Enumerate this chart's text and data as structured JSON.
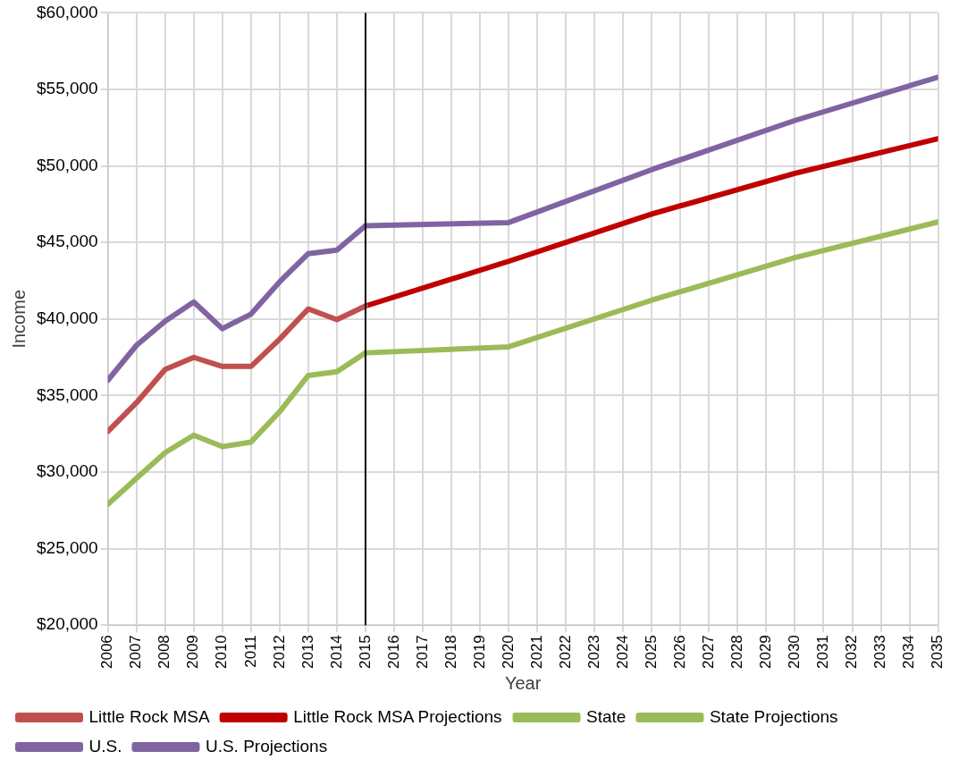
{
  "chart_data": {
    "type": "line",
    "xlabel": "Year",
    "ylabel": "Income",
    "series": [
      {
        "name": "Little Rock MSA",
        "color": "#c0504d",
        "x": [
          2006,
          2007,
          2008,
          2009,
          2010,
          2011,
          2012,
          2013,
          2014,
          2015
        ],
        "values": [
          32650,
          34530,
          36700,
          37490,
          36900,
          36900,
          38680,
          40660,
          39960,
          40850
        ]
      },
      {
        "name": "Little Rock MSA Projections",
        "color": "#c00000",
        "x": [
          2015,
          2020,
          2025,
          2030,
          2035
        ],
        "values": [
          40850,
          43770,
          46860,
          49520,
          51780
        ]
      },
      {
        "name": "State",
        "color": "#9bbb59",
        "x": [
          2006,
          2007,
          2008,
          2009,
          2010,
          2011,
          2012,
          2013,
          2014,
          2015
        ],
        "values": [
          27900,
          29590,
          31270,
          32410,
          31660,
          31960,
          33940,
          36310,
          36560,
          37790
        ]
      },
      {
        "name": "State Projections",
        "color": "#9bbb59",
        "x": [
          2015,
          2020,
          2025,
          2030,
          2035
        ],
        "values": [
          37790,
          38180,
          41230,
          44010,
          46340
        ]
      },
      {
        "name": "U.S.",
        "color": "#8064a2",
        "x": [
          2006,
          2007,
          2008,
          2009,
          2010,
          2011,
          2012,
          2013,
          2014,
          2015
        ],
        "values": [
          36000,
          38280,
          39860,
          41110,
          39370,
          40320,
          42430,
          44270,
          44500,
          46090
        ]
      },
      {
        "name": "U.S. Projections",
        "color": "#8064a2",
        "x": [
          2015,
          2020,
          2025,
          2030,
          2035
        ],
        "values": [
          46090,
          46300,
          49760,
          52970,
          55800
        ]
      }
    ],
    "xlim": [
      2006,
      2035
    ],
    "xticks": [
      2006,
      2007,
      2008,
      2009,
      2010,
      2011,
      2012,
      2013,
      2014,
      2015,
      2016,
      2017,
      2018,
      2019,
      2020,
      2021,
      2022,
      2023,
      2024,
      2025,
      2026,
      2027,
      2028,
      2029,
      2030,
      2031,
      2032,
      2033,
      2034,
      2035
    ],
    "ylim": [
      20000,
      60000
    ],
    "yticks": [
      {
        "value": 20000,
        "label": "$20,000"
      },
      {
        "value": 25000,
        "label": "$25,000"
      },
      {
        "value": 30000,
        "label": "$30,000"
      },
      {
        "value": 35000,
        "label": "$35,000"
      },
      {
        "value": 40000,
        "label": "$40,000"
      },
      {
        "value": 45000,
        "label": "$45,000"
      },
      {
        "value": 50000,
        "label": "$50,000"
      },
      {
        "value": 55000,
        "label": "$55,000"
      },
      {
        "value": 60000,
        "label": "$60,000"
      }
    ],
    "ref_lines": [
      {
        "axis": "x",
        "value": 2015,
        "color": "#000000"
      }
    ],
    "grid": true,
    "legend": "bottom",
    "marker": "none",
    "line_style": "solid"
  }
}
